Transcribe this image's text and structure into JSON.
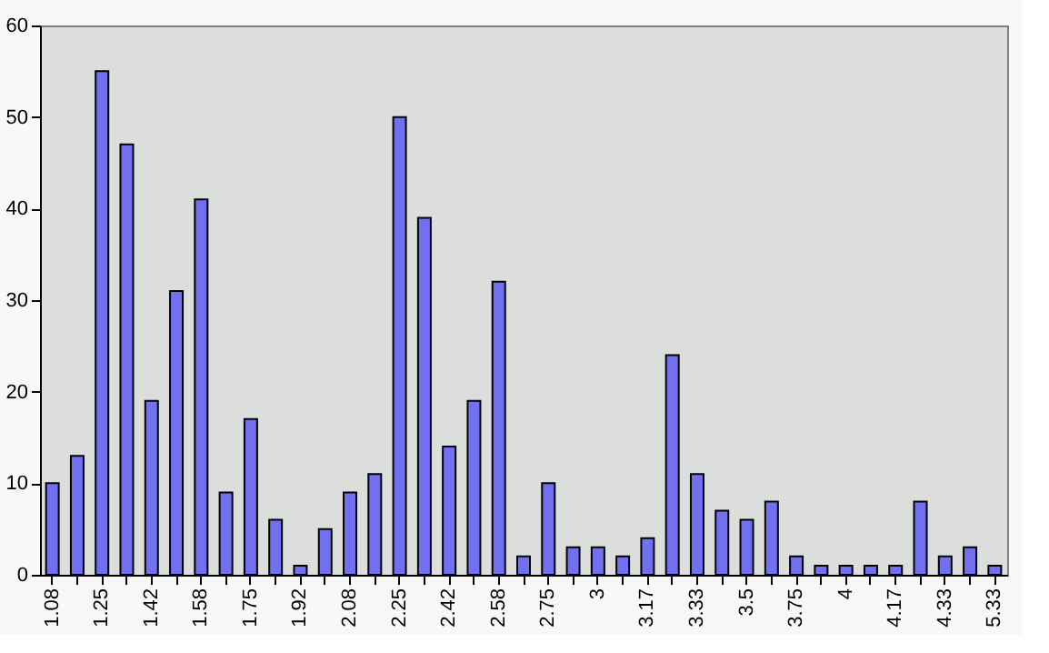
{
  "chart_data": {
    "type": "bar",
    "categories": [
      "1.08",
      null,
      "1.25",
      null,
      "1.42",
      null,
      "1.58",
      null,
      "1.75",
      null,
      "1.92",
      null,
      "2.08",
      null,
      "2.25",
      null,
      "2.42",
      null,
      "2.58",
      null,
      "2.75",
      null,
      "3",
      null,
      "3.17",
      null,
      "3.33",
      null,
      "3.5",
      null,
      "3.75",
      null,
      "4",
      null,
      "4.17",
      null,
      "4.33",
      null,
      "5.33"
    ],
    "values": [
      10,
      13,
      55,
      47,
      19,
      31,
      41,
      9,
      17,
      6,
      1,
      5,
      9,
      11,
      50,
      39,
      14,
      19,
      32,
      2,
      10,
      3,
      3,
      2,
      4,
      24,
      11,
      7,
      6,
      8,
      2,
      1,
      1,
      1,
      1,
      8,
      2,
      3,
      1
    ],
    "color": "#7070f0",
    "ylim": [
      0,
      60
    ],
    "yticks": [
      0,
      10,
      20,
      30,
      40,
      50,
      60
    ],
    "grid": false
  }
}
